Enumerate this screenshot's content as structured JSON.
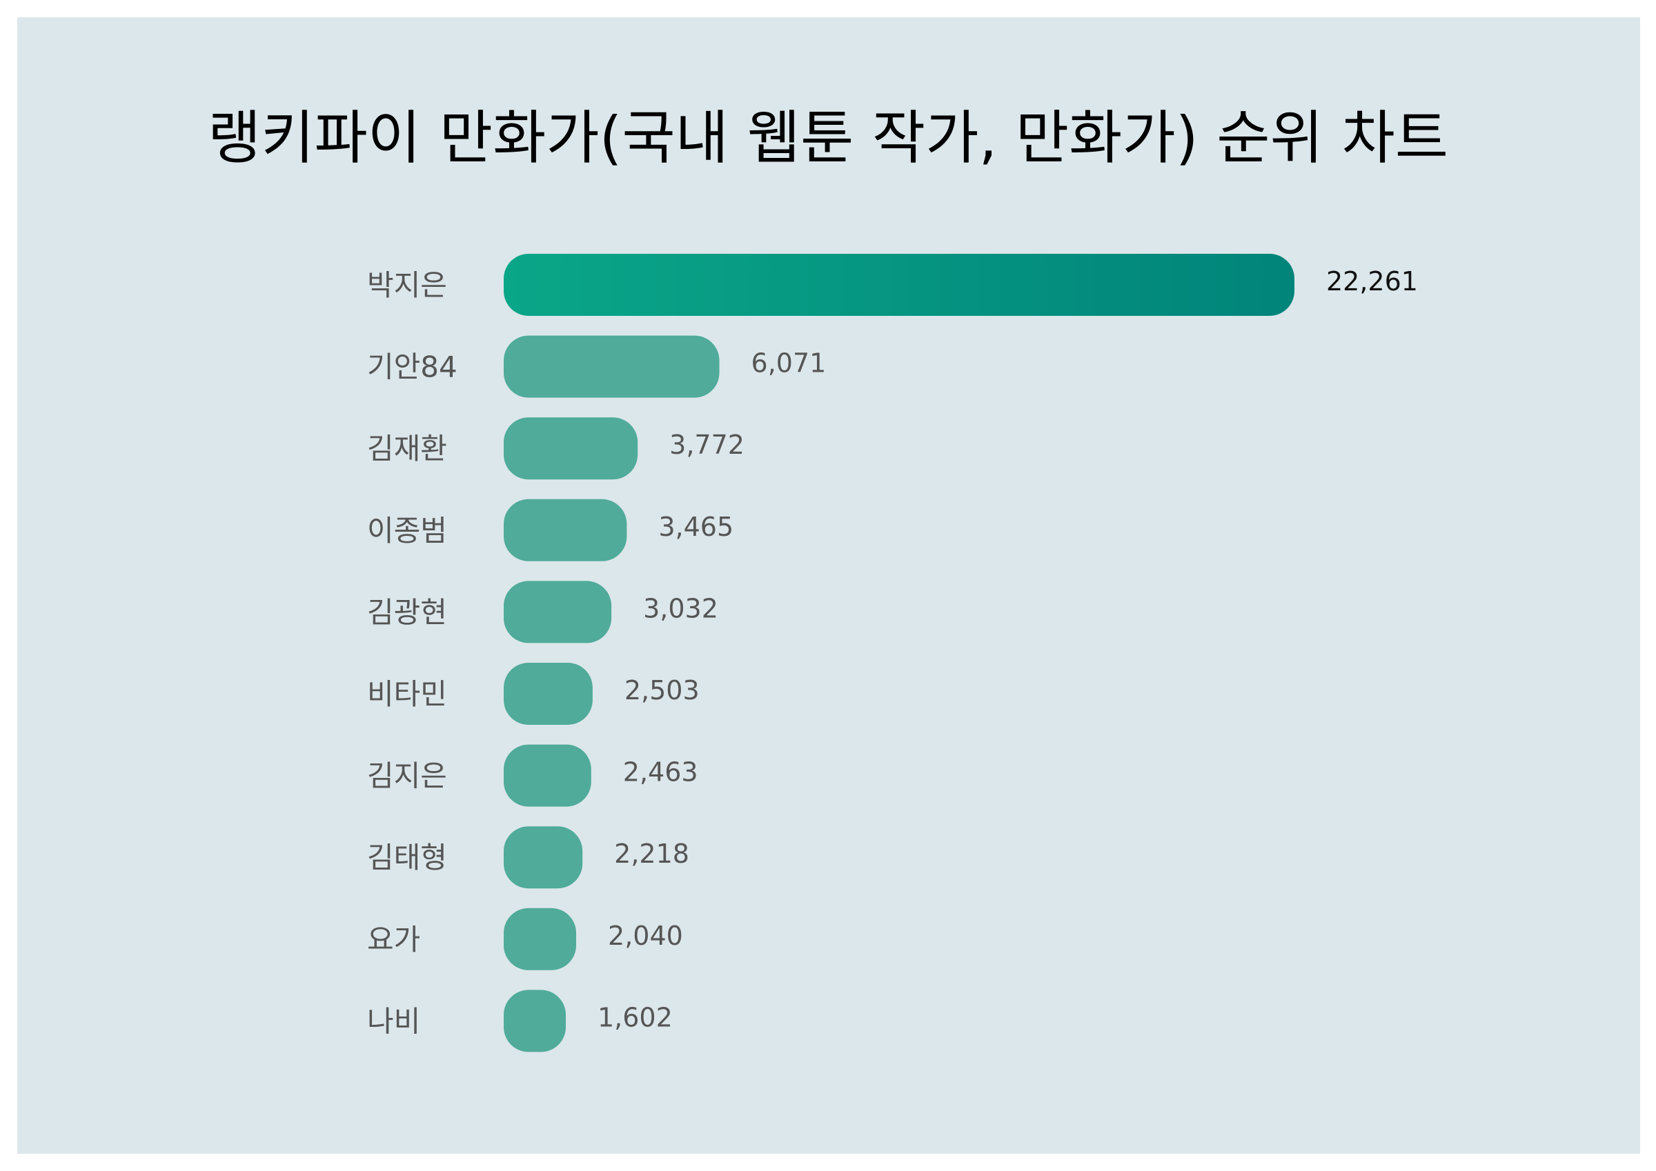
{
  "chart_data": {
    "type": "bar",
    "orientation": "horizontal",
    "title": "랭키파이 만화가(국내 웹툰 작가, 만화가) 순위 차트",
    "categories": [
      "박지은",
      "기안84",
      "김재환",
      "이종범",
      "김광현",
      "비타민",
      "김지은",
      "김태형",
      "요가",
      "나비"
    ],
    "values": [
      22261,
      6071,
      3772,
      3465,
      3032,
      2503,
      2463,
      2218,
      2040,
      1602
    ],
    "value_labels": [
      "22,261",
      "6,071",
      "3,772",
      "3,465",
      "3,032",
      "2,503",
      "2,463",
      "2,218",
      "2,040",
      "1,602"
    ],
    "xlabel": "",
    "ylabel": "",
    "grid": false,
    "legend": "none",
    "colors": {
      "top_gradient_start": "#0aa688",
      "top_gradient_end": "#01847a",
      "bar": "#50ab9a",
      "background": "#dce7eb"
    }
  }
}
